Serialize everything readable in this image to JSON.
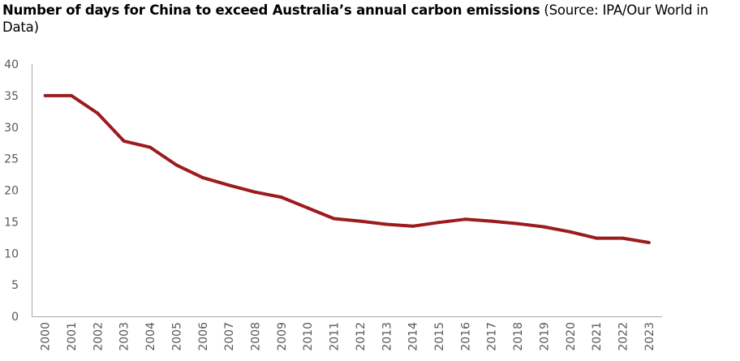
{
  "chart_data": {
    "type": "line",
    "title": "Number of days for China to exceed Australia’s annual carbon emissions",
    "subtitle": "(Source: IPA/Our World in Data)",
    "xlabel": "",
    "ylabel": "",
    "ylim": [
      0,
      40
    ],
    "yticks": [
      0,
      5,
      10,
      15,
      20,
      25,
      30,
      35,
      40
    ],
    "grid": false,
    "legend": "none",
    "categories": [
      "2000",
      "2001",
      "2002",
      "2003",
      "2004",
      "2005",
      "2006",
      "2007",
      "2008",
      "2009",
      "2010",
      "2011",
      "2012",
      "2013",
      "2014",
      "2015",
      "2016",
      "2017",
      "2018",
      "2019",
      "2020",
      "2021",
      "2022",
      "2023"
    ],
    "series": [
      {
        "name": "Days",
        "color": "#9B1B1E",
        "values": [
          35,
          35,
          32.2,
          27.8,
          26.8,
          24,
          22,
          20.8,
          19.7,
          18.9,
          17.2,
          15.5,
          15.1,
          14.6,
          14.3,
          14.9,
          15.4,
          15.1,
          14.7,
          14.2,
          13.4,
          12.4,
          12.4,
          11.7
        ]
      }
    ]
  }
}
